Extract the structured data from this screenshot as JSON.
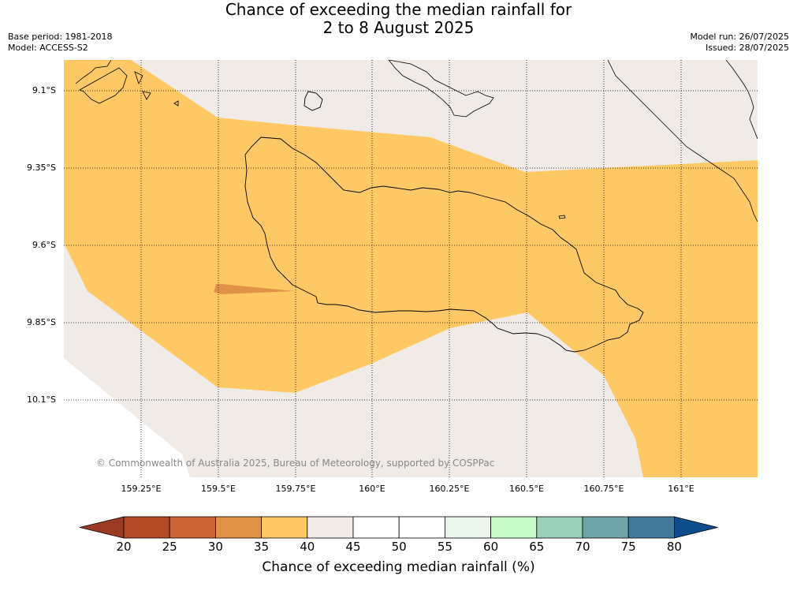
{
  "title": {
    "line1": "Chance of exceeding the median rainfall for",
    "line2": "2 to 8 August 2025"
  },
  "meta": {
    "base_period": "Base period: 1981-2018",
    "model": "Model: ACCESS-S2",
    "model_run": "Model run: 26/07/2025",
    "issued": "Issued: 28/07/2025"
  },
  "map": {
    "lat_labels": [
      "9.1°S",
      "9.35°S",
      "9.6°S",
      "9.85°S",
      "10.1°S"
    ],
    "lon_labels": [
      "159.25°E",
      "159.5°E",
      "159.75°E",
      "160°E",
      "160.25°E",
      "160.5°E",
      "160.75°E",
      "161°E"
    ],
    "copyright": "© Commonwealth of Australia 2025, Bureau of Meteorology, supported by COSPPac",
    "colors": {
      "land_background": "#f0ebe6",
      "band_35_40": "#fec965",
      "band_30_35": "#e09346",
      "ocean_nodata": "#ffffff"
    }
  },
  "colorbar": {
    "title": "Chance of exceeding median rainfall (%)",
    "ticks": [
      "20",
      "25",
      "30",
      "35",
      "40",
      "45",
      "50",
      "55",
      "60",
      "65",
      "70",
      "75",
      "80"
    ],
    "colors": [
      "#b24a27",
      "#cb6535",
      "#e09346",
      "#fec965",
      "#f0ebe6",
      "#ffffff",
      "#ffffff",
      "#eaf5ea",
      "#c8fcc8",
      "#9bd1ba",
      "#6fa5a8",
      "#427b9a"
    ],
    "under_color": "#9a3a22",
    "over_color": "#0d4d8c"
  }
}
